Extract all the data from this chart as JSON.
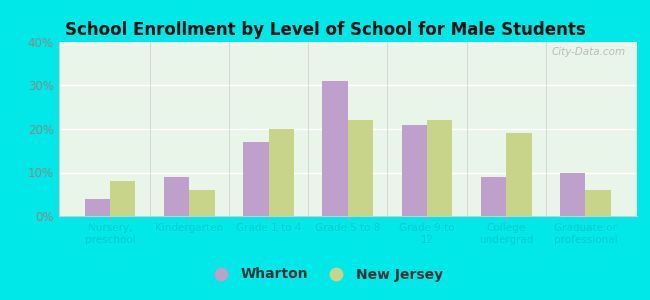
{
  "title": "School Enrollment by Level of School for Male Students",
  "categories": [
    "Nursery,\npreschool",
    "Kindergarten",
    "Grade 1 to 4",
    "Grade 5 to 8",
    "Grade 9 to\n12",
    "College\nundergrad",
    "Graduate or\nprofessional"
  ],
  "wharton": [
    4,
    9,
    17,
    31,
    21,
    9,
    10
  ],
  "new_jersey": [
    8,
    6,
    20,
    22,
    22,
    19,
    6
  ],
  "wharton_color": "#bf9fcc",
  "new_jersey_color": "#c8d48a",
  "background_color": "#00e8e8",
  "plot_bg_top": "#eaf5ea",
  "plot_bg_bottom": "#f5faee",
  "ylim": [
    0,
    40
  ],
  "yticks": [
    0,
    10,
    20,
    30,
    40
  ],
  "bar_width": 0.32,
  "legend_labels": [
    "Wharton",
    "New Jersey"
  ],
  "watermark": "City-Data.com",
  "title_color": "#111111",
  "tick_label_color": "#00cccc",
  "ytick_color": "#888888"
}
